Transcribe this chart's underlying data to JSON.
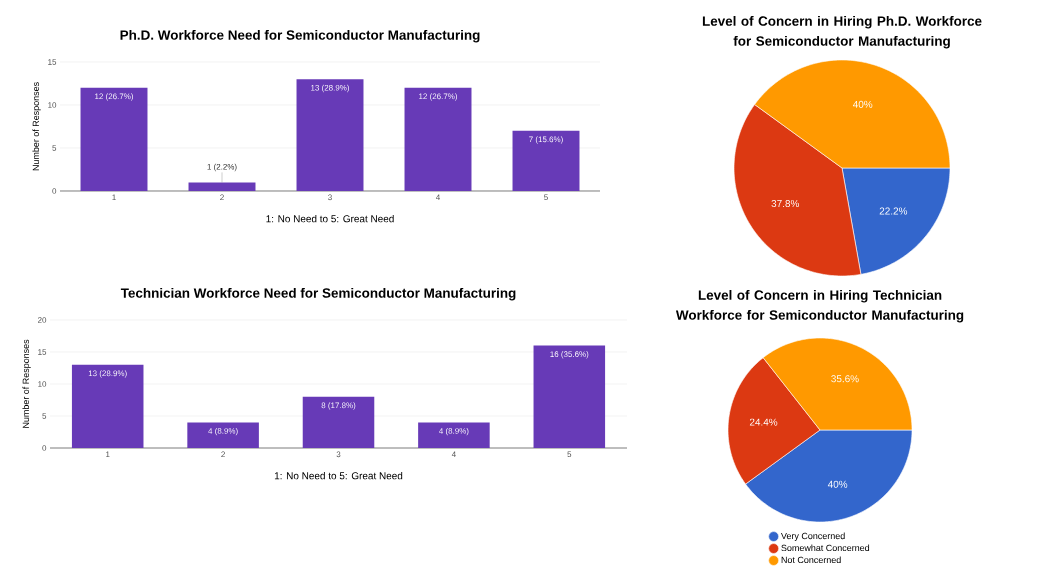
{
  "chart_data": [
    {
      "type": "bar",
      "title": "Ph.D. Workforce Need for Semiconductor Manufacturing",
      "xlabel": "1: No Need to 5: Great Need",
      "ylabel": "Number of Responses",
      "categories": [
        "1",
        "2",
        "3",
        "4",
        "5"
      ],
      "values": [
        12,
        1,
        13,
        12,
        7
      ],
      "value_labels": [
        "12 (26.7%)",
        "1 (2.2%)",
        "13 (28.9%)",
        "12 (26.7%)",
        "7 (15.6%)"
      ],
      "color": "#673ab7",
      "ylim": [
        0,
        15
      ],
      "yticks": [
        0,
        5,
        10,
        15
      ],
      "grid": "y"
    },
    {
      "type": "pie",
      "title": "Level of Concern in Hiring Ph.D. Workforce for Semiconductor Manufacturing",
      "categories": [
        null,
        null,
        null
      ],
      "values": [
        22.2,
        37.8,
        40
      ],
      "value_labels": [
        "22.2%",
        "37.8%",
        "40%"
      ],
      "colors": [
        "#3366cc",
        "#dc3912",
        "#ff9900"
      ]
    },
    {
      "type": "bar",
      "title": "Technician Workforce Need for Semiconductor Manufacturing",
      "xlabel": "1: No Need to 5: Great Need",
      "ylabel": "Number of Responses",
      "categories": [
        "1",
        "2",
        "3",
        "4",
        "5"
      ],
      "values": [
        13,
        4,
        8,
        4,
        16
      ],
      "value_labels": [
        "13 (28.9%)",
        "4 (8.9%)",
        "8 (17.8%)",
        "4 (8.9%)",
        "16 (35.6%)"
      ],
      "color": "#673ab7",
      "ylim": [
        0,
        20
      ],
      "yticks": [
        0,
        5,
        10,
        15,
        20
      ],
      "grid": "y"
    },
    {
      "type": "pie",
      "title": "Level of Concern in Hiring Technician Workforce for Semiconductor Manufacturing",
      "categories": [
        "Very Concerned",
        "Somewhat Concerned",
        "Not Concerned"
      ],
      "values": [
        40,
        24.4,
        35.6
      ],
      "value_labels": [
        "40%",
        "24.4%",
        "35.6%"
      ],
      "colors": [
        "#3366cc",
        "#dc3912",
        "#ff9900"
      ],
      "legend": "bottom"
    }
  ]
}
